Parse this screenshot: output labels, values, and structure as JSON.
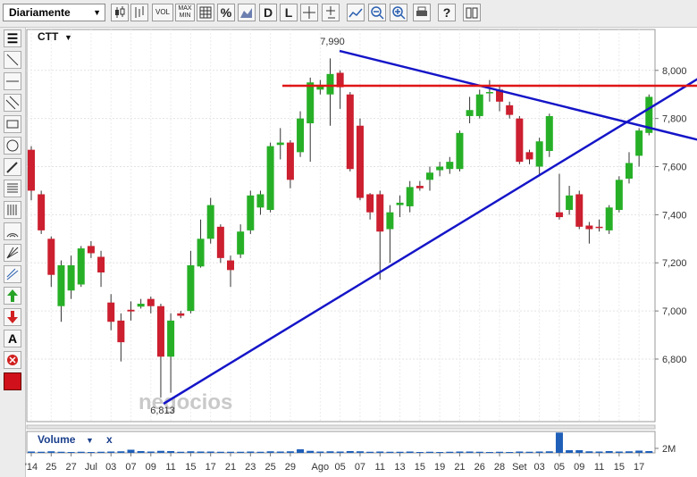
{
  "toolbar": {
    "period": "Diariamente",
    "vol": "VOL",
    "max_min": [
      "MAX",
      "MIN"
    ],
    "percent": "%",
    "d": "D",
    "l": "L"
  },
  "side_toolbar": {
    "text_tool": "A"
  },
  "watermark": "negocios",
  "chart_data": {
    "type": "candlestick",
    "title": "CTT",
    "categories": [
      "'14",
      null,
      "25",
      null,
      "27",
      null,
      "Jul",
      null,
      "03",
      null,
      "07",
      null,
      "09",
      null,
      "11",
      null,
      "15",
      null,
      "17",
      null,
      "21",
      null,
      "23",
      null,
      "25",
      null,
      "29",
      null,
      null,
      "Ago",
      null,
      "05",
      null,
      "07",
      null,
      "11",
      null,
      "13",
      null,
      "15",
      null,
      "19",
      null,
      "21",
      null,
      "26",
      null,
      "28",
      null,
      "Set",
      null,
      "03",
      null,
      "05",
      null,
      "09",
      null,
      "11",
      null,
      "15",
      null,
      "17",
      null
    ],
    "open": [
      7670,
      7485,
      7300,
      7020,
      7085,
      7110,
      7270,
      7225,
      7035,
      6960,
      7005,
      7018,
      7050,
      7020,
      6810,
      6990,
      7000,
      7185,
      7300,
      7350,
      7210,
      7235,
      7335,
      7430,
      7420,
      7690,
      7700,
      7660,
      7780,
      7920,
      7900,
      7990,
      7900,
      7770,
      7485,
      7485,
      7340,
      7440,
      7435,
      7520,
      7545,
      7585,
      7590,
      7590,
      7810,
      7810,
      7905,
      7920,
      7855,
      7800,
      7660,
      7600,
      7665,
      7410,
      7420,
      7485,
      7355,
      7350,
      7335,
      7420,
      7550,
      7645,
      7740
    ],
    "high": [
      7685,
      7500,
      7310,
      7210,
      7230,
      7270,
      7290,
      7250,
      7070,
      6990,
      7040,
      7050,
      7060,
      7030,
      6990,
      7000,
      7250,
      7380,
      7470,
      7360,
      7230,
      7360,
      7500,
      7500,
      7700,
      7760,
      7710,
      7830,
      7970,
      7960,
      8050,
      8000,
      7910,
      7800,
      7490,
      7500,
      7440,
      7480,
      7540,
      7540,
      7600,
      7620,
      7640,
      7750,
      7890,
      7920,
      7960,
      7940,
      7870,
      7810,
      7670,
      7720,
      7820,
      7570,
      7520,
      7500,
      7370,
      7380,
      7440,
      7560,
      7660,
      7760,
      7900
    ],
    "low": [
      7460,
      7320,
      7100,
      6955,
      7050,
      7100,
      7220,
      7100,
      6920,
      6790,
      6960,
      7010,
      6990,
      6640,
      6660,
      6970,
      6990,
      7180,
      7280,
      7200,
      7100,
      7220,
      7320,
      7400,
      7410,
      7630,
      7510,
      7640,
      7620,
      7900,
      7770,
      7840,
      7580,
      7460,
      7380,
      7130,
      7200,
      7390,
      7410,
      7500,
      7500,
      7560,
      7570,
      7580,
      7780,
      7800,
      7870,
      7830,
      7800,
      7610,
      7610,
      7560,
      7640,
      7380,
      7400,
      7340,
      7280,
      7330,
      7320,
      7410,
      7530,
      7600,
      7730
    ],
    "close": [
      7500,
      7335,
      7150,
      7190,
      7190,
      7260,
      7240,
      7160,
      6955,
      6870,
      6998,
      7030,
      7020,
      6810,
      6960,
      6980,
      7190,
      7300,
      7440,
      7220,
      7170,
      7330,
      7480,
      7485,
      7685,
      7700,
      7545,
      7800,
      7950,
      7940,
      7985,
      7930,
      7590,
      7470,
      7410,
      7330,
      7410,
      7450,
      7515,
      7510,
      7575,
      7600,
      7620,
      7740,
      7835,
      7900,
      7910,
      7870,
      7815,
      7620,
      7630,
      7705,
      7810,
      7390,
      7480,
      7350,
      7340,
      7345,
      7430,
      7545,
      7615,
      7750,
      7890
    ],
    "up_color": "#27b027",
    "down_color": "#cc1f2f",
    "ylim": [
      6540,
      8170
    ],
    "yticks": [
      {
        "value": 6800,
        "label": "6,800"
      },
      {
        "value": 7000,
        "label": "7,000"
      },
      {
        "value": 7200,
        "label": "7,200"
      },
      {
        "value": 7400,
        "label": "7,400"
      },
      {
        "value": 7600,
        "label": "7,600"
      },
      {
        "value": 7800,
        "label": "7,800"
      },
      {
        "value": 8000,
        "label": "8,000"
      }
    ],
    "grid": true,
    "max_label": "7,990",
    "min_label": "6,813",
    "volume": {
      "name": "Volume",
      "close_label": "x",
      "color": "#1f5fb8",
      "values": [
        600000,
        500000,
        700000,
        500000,
        400000,
        500000,
        400000,
        500000,
        600000,
        700000,
        1400000,
        800000,
        600000,
        900000,
        800000,
        500000,
        700000,
        600000,
        600000,
        500000,
        500000,
        500000,
        600000,
        500000,
        700000,
        600000,
        700000,
        1600000,
        900000,
        600000,
        700000,
        600000,
        800000,
        700000,
        500000,
        600000,
        500000,
        500000,
        600000,
        400000,
        500000,
        400000,
        500000,
        600000,
        600000,
        500000,
        400000,
        500000,
        400000,
        600000,
        500000,
        600000,
        700000,
        9000000,
        1200000,
        1200000,
        700000,
        600000,
        800000,
        600000,
        700000,
        1000000,
        800000
      ],
      "ylim": [
        0,
        9500000
      ],
      "yticks": [
        {
          "value": 2000000,
          "label": "2M"
        }
      ]
    }
  }
}
